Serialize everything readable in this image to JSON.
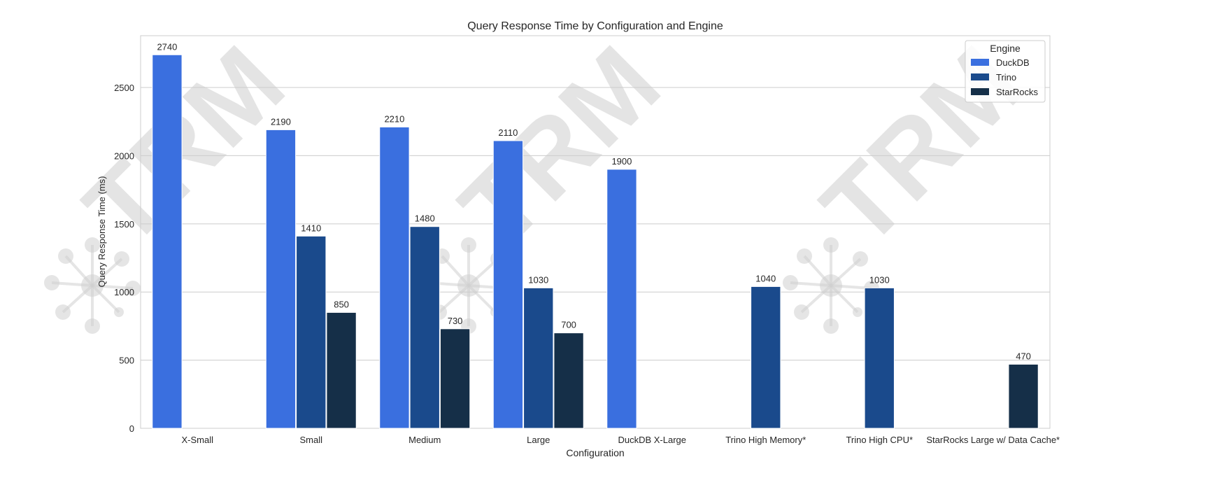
{
  "chart_data": {
    "type": "bar",
    "title": "Query Response Time by Configuration and Engine",
    "xlabel": "Configuration",
    "ylabel": "Query Response Time (ms)",
    "ylim": [
      0,
      2880
    ],
    "yticks": [
      0,
      500,
      1000,
      1500,
      2000,
      2500
    ],
    "grid": "horizontal",
    "categories": [
      "X-Small",
      "Small",
      "Medium",
      "Large",
      "DuckDB X-Large",
      "Trino High Memory*",
      "Trino High CPU*",
      "StarRocks Large w/ Data Cache*"
    ],
    "series": [
      {
        "name": "DuckDB",
        "color": "#3a6fdf",
        "values": [
          2740,
          2190,
          2210,
          2110,
          1900,
          null,
          null,
          null
        ]
      },
      {
        "name": "Trino",
        "color": "#1a4a8c",
        "values": [
          null,
          1410,
          1480,
          1030,
          null,
          1040,
          1030,
          null
        ]
      },
      {
        "name": "StarRocks",
        "color": "#152f48",
        "values": [
          null,
          850,
          730,
          700,
          null,
          null,
          null,
          470
        ]
      }
    ],
    "legend": {
      "title": "Engine",
      "placement": "top-right"
    },
    "watermark": "TRM"
  }
}
